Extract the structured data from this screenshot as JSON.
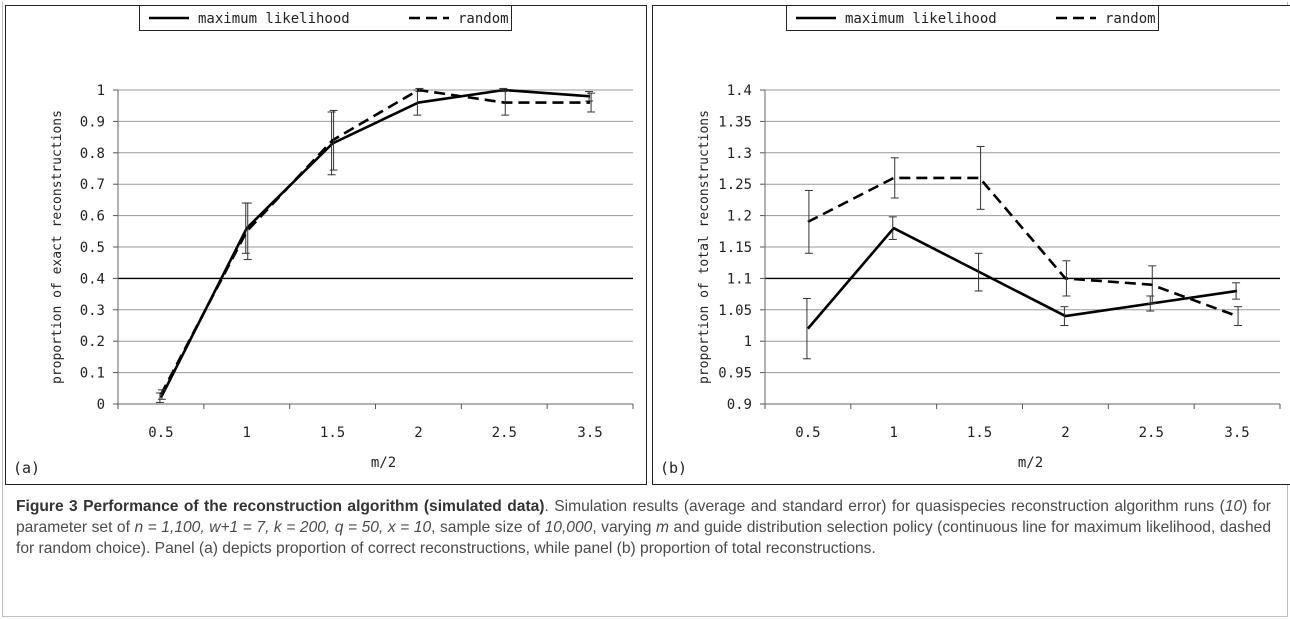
{
  "chart_data": [
    {
      "type": "line",
      "panel_label": "(a)",
      "xlabel": "m/2",
      "ylabel": "proportion of exact reconstructions",
      "categories": [
        "0.5",
        "1",
        "1.5",
        "2",
        "2.5",
        "3.5"
      ],
      "ylim": [
        0,
        1
      ],
      "yticks": [
        "0",
        "0.1",
        "0.2",
        "0.3",
        "0.4",
        "0.5",
        "0.6",
        "0.7",
        "0.8",
        "0.9",
        "1"
      ],
      "series": [
        {
          "name": "maximum likelihood",
          "style": "solid",
          "values": [
            0.02,
            0.56,
            0.83,
            0.96,
            1.0,
            0.98
          ],
          "errors": [
            0.015,
            0.08,
            0.1,
            0.04,
            0.005,
            0.015
          ]
        },
        {
          "name": "random",
          "style": "dashed",
          "values": [
            0.03,
            0.55,
            0.84,
            1.0,
            0.96,
            0.96
          ],
          "errors": [
            0.015,
            0.09,
            0.095,
            0.005,
            0.04,
            0.03
          ]
        }
      ],
      "legend": "top",
      "grid": true,
      "highlight_gridline": 0.4
    },
    {
      "type": "line",
      "panel_label": "(b)",
      "xlabel": "m/2",
      "ylabel": "proportion of total reconstructions",
      "categories": [
        "0.5",
        "1",
        "1.5",
        "2",
        "2.5",
        "3.5"
      ],
      "ylim": [
        0.9,
        1.4
      ],
      "yticks": [
        "0.9",
        "0.95",
        "1",
        "1.05",
        "1.1",
        "1.15",
        "1.2",
        "1.25",
        "1.3",
        "1.35",
        "1.4"
      ],
      "series": [
        {
          "name": "maximum likelihood",
          "style": "solid",
          "values": [
            1.02,
            1.18,
            1.11,
            1.04,
            1.06,
            1.08
          ],
          "errors": [
            0.048,
            0.018,
            0.03,
            0.015,
            0.012,
            0.013
          ]
        },
        {
          "name": "random",
          "style": "dashed",
          "values": [
            1.19,
            1.26,
            1.26,
            1.1,
            1.09,
            1.04
          ],
          "errors": [
            0.05,
            0.032,
            0.05,
            0.028,
            0.03,
            0.015
          ]
        }
      ],
      "legend": "top",
      "grid": true,
      "highlight_gridline": 1.1
    }
  ],
  "caption": {
    "title": "Figure 3 Performance of the reconstruction algorithm (simulated data)",
    "parts": [
      {
        "text": ". Simulation results (average and standard error) for quasispecies reconstruction algorithm runs (",
        "italic": false
      },
      {
        "text": "10",
        "italic": true
      },
      {
        "text": ") for parameter set of ",
        "italic": false
      },
      {
        "text": "n = 1,100, w+1 = 7, k = 200, q = 50, x = 10",
        "italic": true
      },
      {
        "text": ", sample size of ",
        "italic": false
      },
      {
        "text": "10,000",
        "italic": true
      },
      {
        "text": ", varying ",
        "italic": false
      },
      {
        "text": "m",
        "italic": true
      },
      {
        "text": " and guide distribution selection policy (continuous line for maximum likelihood, dashed for random choice). Panel (a) depicts proportion of correct reconstructions, while panel (b) proportion of total reconstructions.",
        "italic": false
      }
    ]
  }
}
